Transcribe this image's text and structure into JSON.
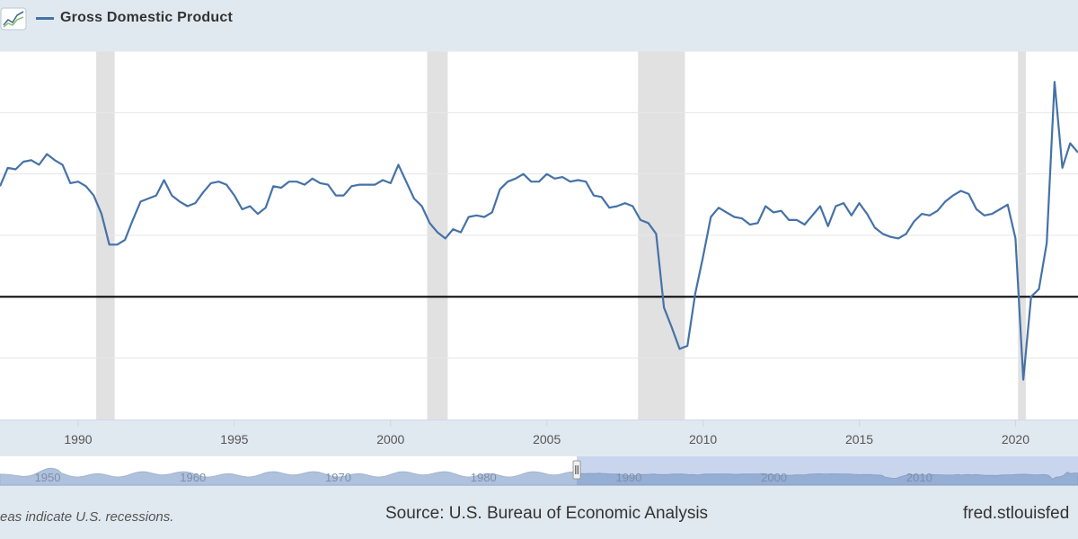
{
  "legend": {
    "label": "Gross Domestic Product",
    "color": "#4572a7"
  },
  "footer": {
    "note": "eas indicate U.S. recessions.",
    "source": "Source: U.S. Bureau of Economic Analysis",
    "brand": "fred.stlouisfed"
  },
  "colors": {
    "line": "#4572a7",
    "recession": "#e1e1e1",
    "zero_line": "#000000",
    "grid": "#e6e6e6",
    "plot_bg": "#ffffff",
    "navigator_series": "#6d8fc2",
    "navigator_mask": "#b6c7e6"
  },
  "chart_data": {
    "type": "line",
    "xlabel": "",
    "ylabel": "",
    "xlim": [
      1987.5,
      2022.0
    ],
    "ylim": [
      -4,
      8
    ],
    "x_ticks": [
      1990,
      1995,
      2000,
      2005,
      2010,
      2015,
      2020
    ],
    "x_tick_labels": [
      "1990",
      "1995",
      "2000",
      "2005",
      "2010",
      "2015",
      "2020"
    ],
    "grid": true,
    "recessions": [
      [
        1990.58,
        1991.17
      ],
      [
        2001.17,
        2001.83
      ],
      [
        2007.92,
        2009.42
      ],
      [
        2020.08,
        2020.33
      ]
    ],
    "series": [
      {
        "name": "Gross Domestic Product",
        "x": [
          1987.5,
          1987.75,
          1988.0,
          1988.25,
          1988.5,
          1988.75,
          1989.0,
          1989.25,
          1989.5,
          1989.75,
          1990.0,
          1990.25,
          1990.5,
          1990.75,
          1991.0,
          1991.25,
          1991.5,
          1991.75,
          1992.0,
          1992.25,
          1992.5,
          1992.75,
          1993.0,
          1993.25,
          1993.5,
          1993.75,
          1994.0,
          1994.25,
          1994.5,
          1994.75,
          1995.0,
          1995.25,
          1995.5,
          1995.75,
          1996.0,
          1996.25,
          1996.5,
          1996.75,
          1997.0,
          1997.25,
          1997.5,
          1997.75,
          1998.0,
          1998.25,
          1998.5,
          1998.75,
          1999.0,
          1999.25,
          1999.5,
          1999.75,
          2000.0,
          2000.25,
          2000.5,
          2000.75,
          2001.0,
          2001.25,
          2001.5,
          2001.75,
          2002.0,
          2002.25,
          2002.5,
          2002.75,
          2003.0,
          2003.25,
          2003.5,
          2003.75,
          2004.0,
          2004.25,
          2004.5,
          2004.75,
          2005.0,
          2005.25,
          2005.5,
          2005.75,
          2006.0,
          2006.25,
          2006.5,
          2006.75,
          2007.0,
          2007.25,
          2007.5,
          2007.75,
          2008.0,
          2008.25,
          2008.5,
          2008.75,
          2009.0,
          2009.25,
          2009.5,
          2009.75,
          2010.0,
          2010.25,
          2010.5,
          2010.75,
          2011.0,
          2011.25,
          2011.5,
          2011.75,
          2012.0,
          2012.25,
          2012.5,
          2012.75,
          2013.0,
          2013.25,
          2013.5,
          2013.75,
          2014.0,
          2014.25,
          2014.5,
          2014.75,
          2015.0,
          2015.25,
          2015.5,
          2015.75,
          2016.0,
          2016.25,
          2016.5,
          2016.75,
          2017.0,
          2017.25,
          2017.5,
          2017.75,
          2018.0,
          2018.25,
          2018.5,
          2018.75,
          2019.0,
          2019.25,
          2019.5,
          2019.75,
          2020.0,
          2020.25,
          2020.5,
          2020.75,
          2021.0,
          2021.25,
          2021.5,
          2021.75,
          2022.0
        ],
        "values": [
          3.6,
          4.2,
          4.15,
          4.4,
          4.45,
          4.3,
          4.65,
          4.45,
          4.3,
          3.7,
          3.75,
          3.6,
          3.3,
          2.7,
          1.7,
          1.7,
          1.85,
          2.5,
          3.1,
          3.2,
          3.3,
          3.8,
          3.3,
          3.1,
          2.95,
          3.05,
          3.4,
          3.7,
          3.75,
          3.65,
          3.3,
          2.85,
          2.95,
          2.7,
          2.9,
          3.6,
          3.55,
          3.75,
          3.75,
          3.65,
          3.85,
          3.7,
          3.65,
          3.3,
          3.3,
          3.6,
          3.65,
          3.65,
          3.65,
          3.8,
          3.7,
          4.3,
          3.75,
          3.2,
          2.95,
          2.4,
          2.1,
          1.9,
          2.2,
          2.1,
          2.6,
          2.65,
          2.6,
          2.75,
          3.5,
          3.75,
          3.85,
          4.0,
          3.75,
          3.75,
          4.0,
          3.85,
          3.9,
          3.75,
          3.8,
          3.75,
          3.3,
          3.25,
          2.9,
          2.95,
          3.05,
          2.95,
          2.5,
          2.4,
          2.05,
          -0.35,
          -1.0,
          -1.7,
          -1.6,
          0.1,
          1.3,
          2.6,
          2.9,
          2.75,
          2.6,
          2.55,
          2.35,
          2.4,
          2.95,
          2.75,
          2.8,
          2.5,
          2.5,
          2.35,
          2.65,
          2.95,
          2.3,
          2.95,
          3.05,
          2.65,
          3.05,
          2.7,
          2.25,
          2.05,
          1.95,
          1.9,
          2.05,
          2.45,
          2.7,
          2.65,
          2.8,
          3.1,
          3.3,
          3.45,
          3.35,
          2.85,
          2.65,
          2.7,
          2.85,
          3.0,
          1.9,
          -2.7,
          0.0,
          0.25,
          1.75,
          7.0,
          4.2,
          5.0,
          4.7
        ]
      }
    ],
    "navigator": {
      "x_tick_labels": [
        "1950",
        "1960",
        "1970",
        "1980",
        "1990",
        "2000",
        "2010"
      ],
      "x_ticks": [
        1950,
        1960,
        1970,
        1980,
        1990,
        2000,
        2010
      ],
      "xlim": [
        1947.8,
        2022.0
      ],
      "selected_range": [
        1987.5,
        2022.0
      ]
    }
  }
}
